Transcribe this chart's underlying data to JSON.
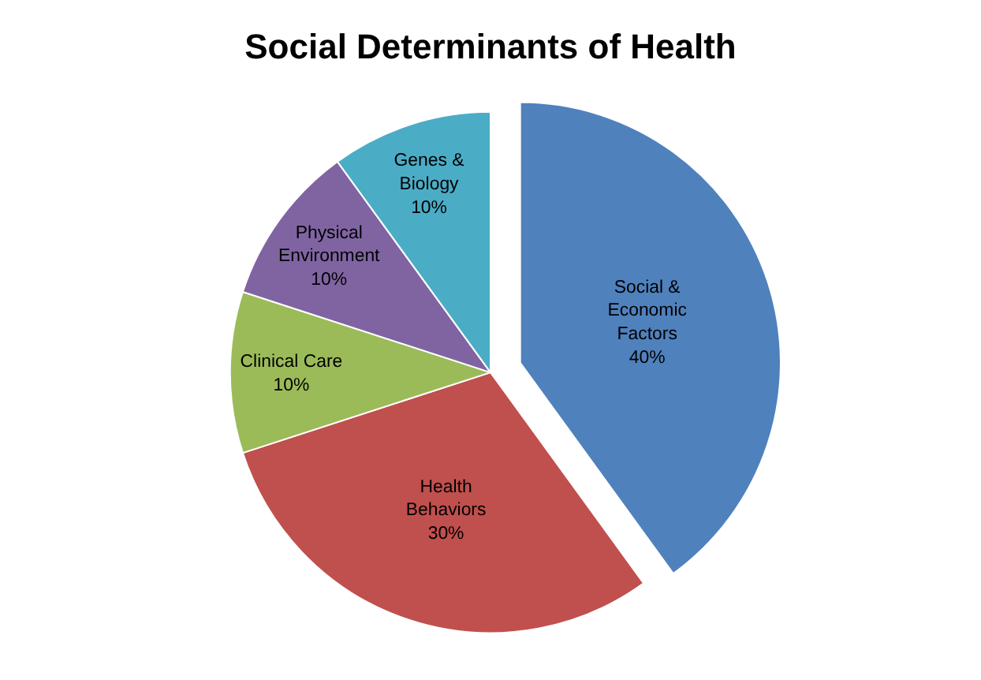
{
  "chart_data": {
    "type": "pie",
    "title": "Social Determinants of Health",
    "categories": [
      "Social & Economic Factors",
      "Health Behaviors",
      "Clinical Care",
      "Physical Environment",
      "Genes & Biology"
    ],
    "values": [
      40,
      30,
      10,
      10,
      10
    ],
    "value_labels": [
      "40%",
      "30%",
      "10%",
      "10%",
      "10%"
    ],
    "colors": [
      "#4f81bd",
      "#c0504d",
      "#9bbb59",
      "#8064a2",
      "#4bacc6"
    ],
    "legend": false
  }
}
